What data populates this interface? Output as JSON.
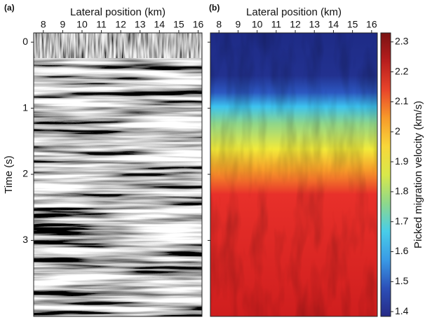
{
  "chart_data": [
    {
      "type": "seismic",
      "panel_label": "(a)",
      "xlabel": "Lateral position (km)",
      "ylabel": "Time (s)",
      "xlim": [
        7.5,
        16.2
      ],
      "xticks": [
        8,
        9,
        10,
        11,
        12,
        13,
        14,
        15,
        16
      ],
      "ylim": [
        -0.14,
        4.15
      ],
      "yticks": [
        0,
        1,
        2,
        3
      ]
    },
    {
      "type": "heatmap",
      "panel_label": "(b)",
      "xlabel": "Lateral position (km)",
      "xlim": [
        7.55,
        16.3
      ],
      "xticks": [
        8,
        9,
        10,
        11,
        12,
        13,
        14,
        15,
        16
      ],
      "ylim": [
        -0.14,
        4.15
      ],
      "yticks": [
        0,
        1,
        2,
        3
      ],
      "zlabel": "Picked migration velocity (km/s)",
      "zlim": [
        1.384,
        2.33
      ],
      "zticks": [
        1.4,
        1.5,
        1.6,
        1.7,
        1.8,
        1.9,
        2,
        2.1,
        2.2,
        2.3
      ],
      "colormap": [
        "#262a86",
        "#2c50b8",
        "#3a9be6",
        "#49cde8",
        "#8fd88a",
        "#d9e84a",
        "#f8d73a",
        "#f79a2a",
        "#e8442a",
        "#b81e1e",
        "#7a1313"
      ]
    }
  ]
}
